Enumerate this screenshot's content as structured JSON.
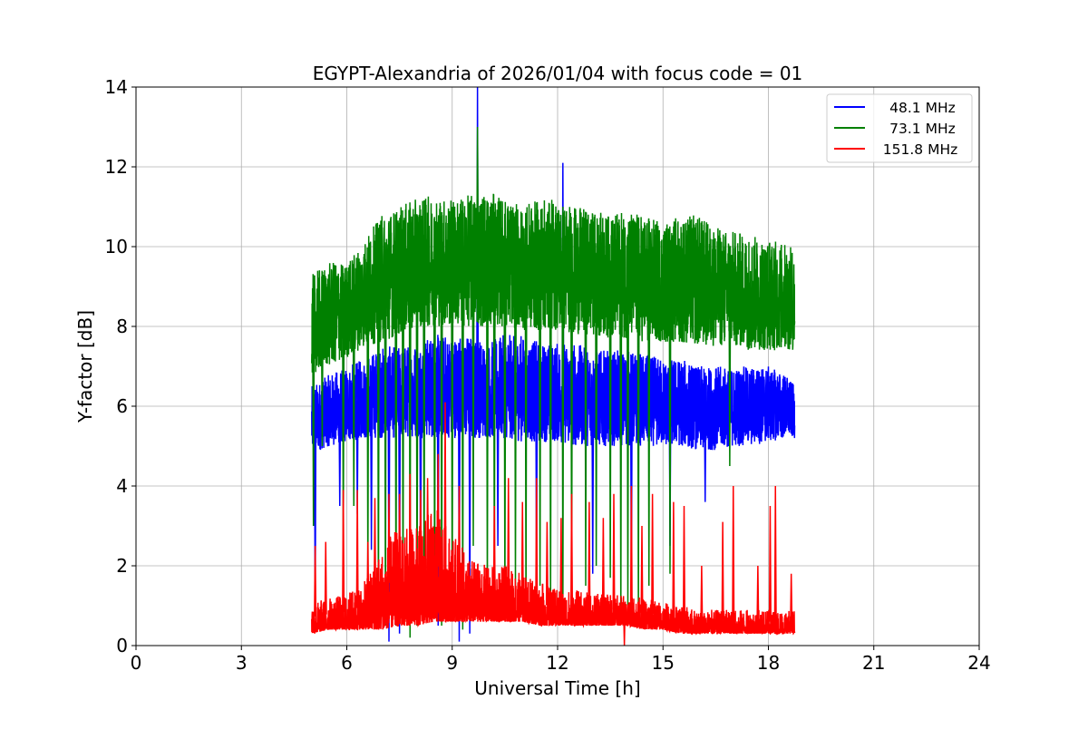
{
  "chart_data": {
    "type": "line",
    "title": "EGYPT-Alexandria of 2026/01/04 with focus code = 01",
    "xlabel": "Universal Time [h]",
    "ylabel": "Y-factor [dB]",
    "xlim": [
      0,
      24
    ],
    "ylim": [
      0,
      14
    ],
    "xticks": [
      "0",
      "3",
      "6",
      "9",
      "12",
      "15",
      "18",
      "21",
      "24"
    ],
    "yticks": [
      "0",
      "2",
      "4",
      "6",
      "8",
      "10",
      "12",
      "14"
    ],
    "grid": true,
    "legend_position": "top-right",
    "t": [
      5,
      5.5,
      6,
      6.5,
      7,
      7.5,
      8,
      8.5,
      9,
      9.5,
      10,
      10.5,
      11,
      11.5,
      12,
      12.5,
      13,
      13.5,
      14,
      14.5,
      15,
      15.5,
      16,
      16.5,
      17,
      17.5,
      18,
      18.5,
      18.75
    ],
    "series": [
      {
        "name": " 48.1 MHz",
        "color": "#0000ff",
        "low": [
          4.8,
          5.0,
          5.1,
          5.2,
          5.2,
          5.2,
          5.2,
          5.2,
          5.2,
          5.2,
          5.2,
          5.2,
          5.1,
          5.1,
          5.1,
          5.0,
          5.0,
          5.0,
          5.0,
          5.0,
          5.0,
          5.0,
          4.9,
          4.9,
          5.0,
          5.0,
          5.1,
          5.2,
          5.2
        ],
        "high": [
          6.5,
          6.8,
          7.0,
          7.2,
          7.5,
          7.5,
          7.6,
          7.8,
          7.8,
          7.8,
          7.6,
          7.8,
          7.8,
          7.6,
          7.6,
          7.6,
          7.4,
          7.4,
          7.4,
          7.3,
          7.2,
          7.2,
          7.0,
          7.0,
          7.0,
          7.0,
          7.0,
          6.8,
          6.5
        ],
        "spikes": [
          [
            5.1,
            0.8
          ],
          [
            5.8,
            3.5
          ],
          [
            6.3,
            3.3
          ],
          [
            6.7,
            2.4
          ],
          [
            7.2,
            0.1
          ],
          [
            7.5,
            0.3
          ],
          [
            8.1,
            0.8
          ],
          [
            8.6,
            0.5
          ],
          [
            9.2,
            0.1
          ],
          [
            9.5,
            0.3
          ],
          [
            9.72,
            14.0
          ],
          [
            10.3,
            2.5
          ],
          [
            11.4,
            1.7
          ],
          [
            12.15,
            12.1
          ],
          [
            13.0,
            1.8
          ],
          [
            14.1,
            1.2
          ],
          [
            15.2,
            2.5
          ],
          [
            16.2,
            3.6
          ]
        ]
      },
      {
        "name": " 73.1 MHz",
        "color": "#008000",
        "low": [
          6.8,
          7.0,
          7.2,
          7.5,
          7.6,
          7.8,
          8.0,
          8.0,
          8.0,
          8.0,
          8.0,
          8.0,
          7.9,
          7.9,
          7.9,
          7.8,
          7.8,
          7.7,
          7.7,
          7.6,
          7.6,
          7.6,
          7.5,
          7.5,
          7.5,
          7.4,
          7.4,
          7.4,
          7.4
        ],
        "high": [
          9.3,
          9.6,
          9.6,
          10.2,
          10.8,
          11.0,
          11.2,
          11.3,
          11.2,
          11.3,
          11.4,
          11.2,
          11.0,
          11.2,
          11.2,
          11.0,
          10.9,
          10.8,
          10.9,
          10.8,
          10.6,
          10.8,
          10.8,
          10.5,
          10.4,
          10.3,
          10.2,
          10.1,
          9.9
        ],
        "spikes": [
          [
            5.05,
            3.0
          ],
          [
            5.3,
            5.0
          ],
          [
            5.9,
            2.5
          ],
          [
            6.2,
            3.5
          ],
          [
            6.6,
            1.5
          ],
          [
            6.9,
            0.8
          ],
          [
            7.1,
            0.5
          ],
          [
            7.4,
            0.5
          ],
          [
            7.6,
            1.0
          ],
          [
            7.8,
            0.2
          ],
          [
            8.0,
            0.5
          ],
          [
            8.2,
            1.2
          ],
          [
            8.5,
            0.8
          ],
          [
            8.7,
            0.5
          ],
          [
            9.0,
            0.6
          ],
          [
            9.3,
            0.4
          ],
          [
            9.6,
            2.5
          ],
          [
            9.72,
            13.0
          ],
          [
            10.0,
            1.0
          ],
          [
            10.2,
            1.3
          ],
          [
            10.5,
            0.8
          ],
          [
            10.8,
            1.4
          ],
          [
            11.1,
            0.8
          ],
          [
            11.5,
            1.5
          ],
          [
            11.8,
            0.9
          ],
          [
            12.15,
            0.7
          ],
          [
            12.4,
            1.2
          ],
          [
            12.8,
            1.5
          ],
          [
            13.1,
            2.0
          ],
          [
            13.5,
            1.7
          ],
          [
            13.8,
            0.6
          ],
          [
            14.0,
            1.0
          ],
          [
            14.3,
            0.8
          ],
          [
            14.6,
            1.5
          ],
          [
            15.2,
            1.8
          ],
          [
            16.9,
            4.5
          ]
        ]
      },
      {
        "name": "151.8 MHz",
        "color": "#ff0000",
        "low": [
          0.3,
          0.4,
          0.4,
          0.4,
          0.4,
          0.5,
          0.5,
          0.6,
          0.6,
          0.6,
          0.6,
          0.6,
          0.6,
          0.5,
          0.5,
          0.5,
          0.5,
          0.5,
          0.5,
          0.4,
          0.4,
          0.3,
          0.3,
          0.3,
          0.3,
          0.3,
          0.3,
          0.3,
          0.3
        ],
        "high": [
          1.1,
          1.2,
          1.3,
          1.6,
          2.5,
          3.0,
          3.0,
          3.5,
          2.8,
          2.2,
          2.0,
          2.0,
          1.8,
          1.6,
          1.4,
          1.4,
          1.3,
          1.3,
          1.3,
          1.2,
          1.1,
          1.0,
          0.9,
          0.9,
          0.9,
          0.9,
          0.9,
          0.9,
          0.9
        ],
        "spikes": [
          [
            5.1,
            2.5
          ],
          [
            5.4,
            2.6
          ],
          [
            5.9,
            3.9
          ],
          [
            6.3,
            3.9
          ],
          [
            6.6,
            2.6
          ],
          [
            6.8,
            3.7
          ],
          [
            7.2,
            3.8
          ],
          [
            7.5,
            3.8
          ],
          [
            7.8,
            4.3
          ],
          [
            8.1,
            3.9
          ],
          [
            8.3,
            4.2
          ],
          [
            8.6,
            4.8
          ],
          [
            8.8,
            6.1
          ],
          [
            9.2,
            4.0
          ],
          [
            10.2,
            3.5
          ],
          [
            10.6,
            4.2
          ],
          [
            11.0,
            3.6
          ],
          [
            11.4,
            4.2
          ],
          [
            11.7,
            3.1
          ],
          [
            12.1,
            3.2
          ],
          [
            12.4,
            3.8
          ],
          [
            12.9,
            3.6
          ],
          [
            13.3,
            3.2
          ],
          [
            13.6,
            3.8
          ],
          [
            13.9,
            0.0
          ],
          [
            14.1,
            4.0
          ],
          [
            14.4,
            3.0
          ],
          [
            14.7,
            3.8
          ],
          [
            15.3,
            3.6
          ],
          [
            15.6,
            3.5
          ],
          [
            16.1,
            2.0
          ],
          [
            16.7,
            3.1
          ],
          [
            17.0,
            4.0
          ],
          [
            17.7,
            2.0
          ],
          [
            18.05,
            3.5
          ],
          [
            18.2,
            4.0
          ],
          [
            18.65,
            1.8
          ]
        ]
      }
    ]
  }
}
